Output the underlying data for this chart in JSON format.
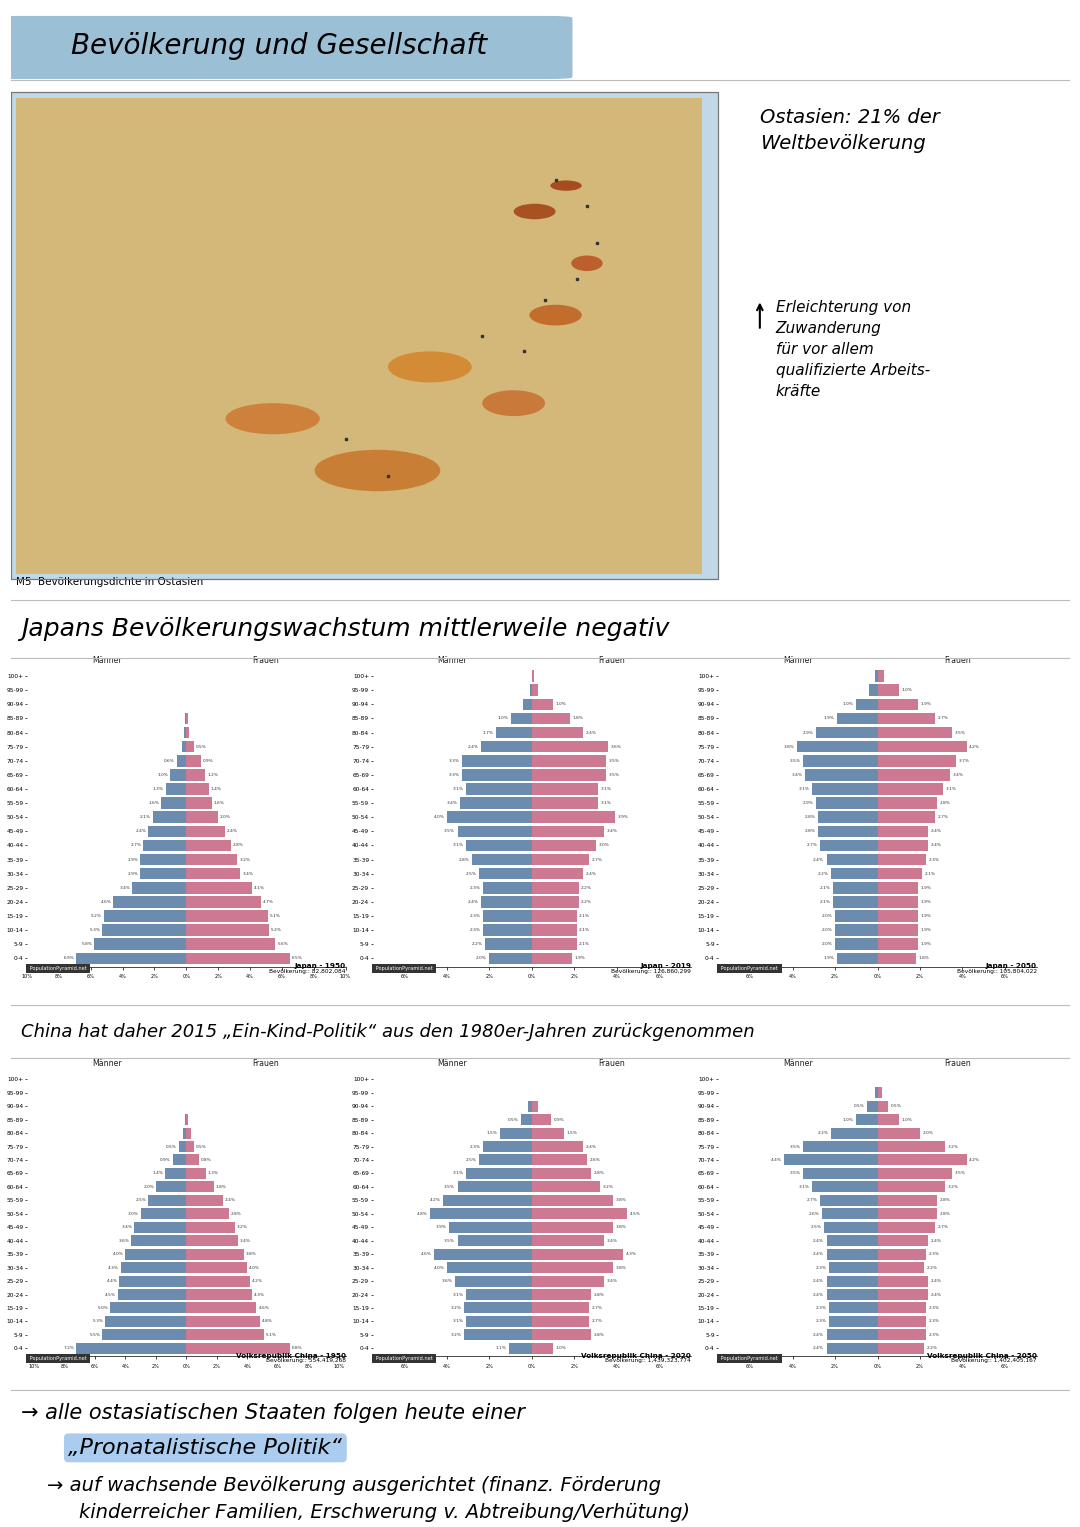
{
  "title": "Bevölkerung und Gesellschaft",
  "bg_color": "#ffffff",
  "title_bg_color": "#9bbfd4",
  "map_caption": "M5  Bevölkerungsdichte in Ostasien",
  "annotation_right_1": "Ostasien: 21% der\nWeltbevölkerung",
  "annotation_right_2": "Erleichterung von\nZuwanderung\nfür vor allem\nqualifizierte Arbeits-\nkräfte",
  "japan_heading": "Japans Bevölkerungswachstum mittlerweile negativ",
  "china_heading": "China hat daher 2015 „Ein-Kind-Politik“ aus den 1980er-Jahren zurückgenommen",
  "footer_line1": "→ alle ostasiatischen Staaten folgen heute einer",
  "footer_line2": "„Pronatalistische Politik“",
  "footer_line3": "→ auf wachsende Bevölkerung ausgerichtet (finanz. Förderung",
  "footer_line4": "kinderreicher Familien, Erschwerung v. Abtreibung/Verhütung)",
  "japan_pyramids": [
    {
      "year": "Japan - 1950",
      "population": "82,802,084",
      "ages": [
        "100+",
        "95-99",
        "90-94",
        "85-89",
        "80-84",
        "75-79",
        "70-74",
        "65-69",
        "60-64",
        "55-59",
        "50-54",
        "45-49",
        "40-44",
        "35-39",
        "30-34",
        "25-29",
        "20-24",
        "15-19",
        "10-14",
        "5-9",
        "0-4"
      ],
      "males": [
        0.0,
        0.0,
        0.0,
        0.06,
        0.15,
        0.3,
        0.6,
        1.0,
        1.3,
        1.6,
        2.1,
        2.4,
        2.7,
        2.9,
        2.9,
        3.4,
        4.6,
        5.2,
        5.3,
        5.8,
        6.9
      ],
      "females": [
        0.0,
        0.0,
        0.0,
        0.1,
        0.2,
        0.5,
        0.9,
        1.2,
        1.4,
        1.6,
        2.0,
        2.4,
        2.8,
        3.2,
        3.4,
        4.1,
        4.7,
        5.1,
        5.2,
        5.6,
        6.5
      ]
    },
    {
      "year": "Japan - 2019",
      "population": "126,860,299",
      "ages": [
        "100+",
        "95-99",
        "90-94",
        "85-89",
        "80-84",
        "75-79",
        "70-74",
        "65-69",
        "60-64",
        "55-59",
        "50-54",
        "45-49",
        "40-44",
        "35-39",
        "30-34",
        "25-29",
        "20-24",
        "15-19",
        "10-14",
        "5-9",
        "0-4"
      ],
      "males": [
        0.0,
        0.1,
        0.4,
        1.0,
        1.7,
        2.4,
        3.3,
        3.3,
        3.1,
        3.4,
        4.0,
        3.5,
        3.1,
        2.8,
        2.5,
        2.3,
        2.4,
        2.3,
        2.3,
        2.2,
        2.0
      ],
      "females": [
        0.1,
        0.3,
        1.0,
        1.8,
        2.4,
        3.6,
        3.5,
        3.5,
        3.1,
        3.1,
        3.9,
        3.4,
        3.0,
        2.7,
        2.4,
        2.2,
        2.2,
        2.1,
        2.1,
        2.1,
        1.9
      ]
    },
    {
      "year": "Japan - 2050",
      "population": "105,804,022",
      "ages": [
        "100+",
        "95-99",
        "90-94",
        "85-89",
        "80-84",
        "75-79",
        "70-74",
        "65-69",
        "60-64",
        "55-59",
        "50-54",
        "45-49",
        "40-44",
        "35-39",
        "30-34",
        "25-29",
        "20-24",
        "15-19",
        "10-14",
        "5-9",
        "0-4"
      ],
      "males": [
        0.1,
        0.4,
        1.0,
        1.9,
        2.9,
        3.8,
        3.5,
        3.4,
        3.1,
        2.9,
        2.8,
        2.8,
        2.7,
        2.4,
        2.2,
        2.1,
        2.1,
        2.0,
        2.0,
        2.0,
        1.9
      ],
      "females": [
        0.3,
        1.0,
        1.9,
        2.7,
        3.5,
        4.2,
        3.7,
        3.4,
        3.1,
        2.8,
        2.7,
        2.4,
        2.4,
        2.3,
        2.1,
        1.9,
        1.9,
        1.9,
        1.9,
        1.9,
        1.8
      ]
    }
  ],
  "china_pyramids": [
    {
      "year": "Volksrepublik China - 1950",
      "population": "554,419,268",
      "ages": [
        "100+",
        "95-99",
        "90-94",
        "85-89",
        "80-84",
        "75-79",
        "70-74",
        "65-69",
        "60-64",
        "55-59",
        "50-54",
        "45-49",
        "40-44",
        "35-39",
        "30-34",
        "25-29",
        "20-24",
        "15-19",
        "10-14",
        "5-9",
        "0-4"
      ],
      "males": [
        0.0,
        0.0,
        0.0,
        0.08,
        0.2,
        0.5,
        0.9,
        1.4,
        2.0,
        2.5,
        3.0,
        3.4,
        3.6,
        4.0,
        4.3,
        4.4,
        4.5,
        5.0,
        5.3,
        5.5,
        7.2
      ],
      "females": [
        0.0,
        0.0,
        0.0,
        0.08,
        0.3,
        0.5,
        0.8,
        1.3,
        1.8,
        2.4,
        2.8,
        3.2,
        3.4,
        3.8,
        4.0,
        4.2,
        4.3,
        4.6,
        4.8,
        5.1,
        6.8
      ]
    },
    {
      "year": "Volksrepublik China - 2020",
      "population": "1,439,323,774",
      "ages": [
        "100+",
        "95-99",
        "90-94",
        "85-89",
        "80-84",
        "75-79",
        "70-74",
        "65-69",
        "60-64",
        "55-59",
        "50-54",
        "45-49",
        "40-44",
        "35-39",
        "30-34",
        "25-29",
        "20-24",
        "15-19",
        "10-14",
        "5-9",
        "0-4"
      ],
      "males": [
        0.0,
        0.0,
        0.2,
        0.5,
        1.5,
        2.3,
        2.5,
        3.1,
        3.5,
        4.2,
        4.8,
        3.9,
        3.5,
        4.6,
        4.0,
        3.6,
        3.1,
        3.2,
        3.1,
        3.2,
        1.1
      ],
      "females": [
        0.0,
        0.0,
        0.3,
        0.9,
        1.5,
        2.4,
        2.6,
        2.8,
        3.2,
        3.8,
        4.5,
        3.8,
        3.4,
        4.3,
        3.8,
        3.4,
        2.8,
        2.7,
        2.7,
        2.8,
        1.0
      ]
    },
    {
      "year": "Volksrepublik China - 2050",
      "population": "1,402,405,167",
      "ages": [
        "100+",
        "95-99",
        "90-94",
        "85-89",
        "80-84",
        "75-79",
        "70-74",
        "65-69",
        "60-64",
        "55-59",
        "50-54",
        "45-49",
        "40-44",
        "35-39",
        "30-34",
        "25-29",
        "20-24",
        "15-19",
        "10-14",
        "5-9",
        "0-4"
      ],
      "males": [
        0.0,
        0.1,
        0.5,
        1.0,
        2.2,
        3.5,
        4.4,
        3.5,
        3.1,
        2.7,
        2.6,
        2.5,
        2.4,
        2.4,
        2.3,
        2.4,
        2.4,
        2.3,
        2.3,
        2.4,
        2.4
      ],
      "females": [
        0.0,
        0.2,
        0.5,
        1.0,
        2.0,
        3.2,
        4.2,
        3.5,
        3.2,
        2.8,
        2.8,
        2.7,
        2.4,
        2.3,
        2.2,
        2.4,
        2.4,
        2.3,
        2.3,
        2.3,
        2.2
      ]
    }
  ],
  "male_color": "#5b7fa6",
  "female_color": "#c86b85",
  "pyramid_source": "PopulationPyramid.net",
  "map_bg_color": "#c8b882",
  "map_water_color": "#a8c8d8",
  "line_color": "#bbbbbb",
  "footer_highlight_color": "#aaccee"
}
